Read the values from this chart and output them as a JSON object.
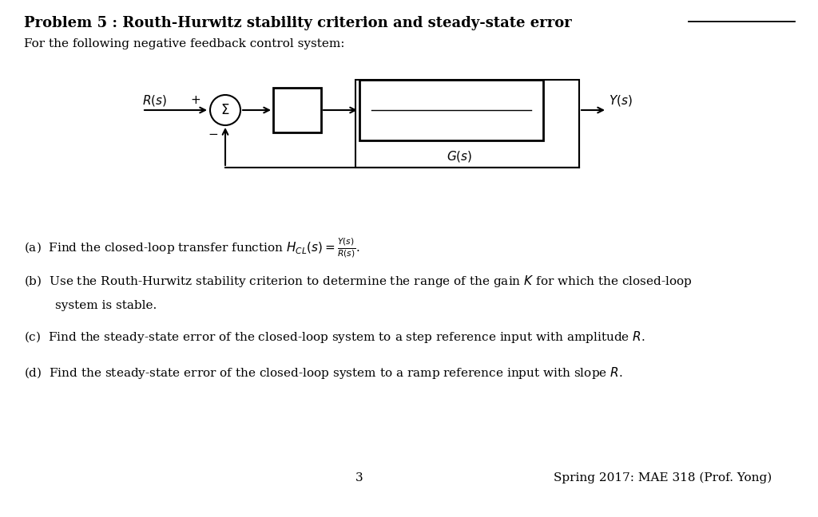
{
  "bg_color": "#ffffff",
  "title_bold": "Problem 5 : Routh-Hurwitz stability criterion and steady-state error",
  "subtitle": "For the following negative feedback control system:",
  "part_a": "(a)  Find the closed-loop transfer function $H_{CL}(s) = \\frac{Y(s)}{R(s)}$.",
  "part_b_line1": "(b)  Use the Routh-Hurwitz stability criterion to determine the range of the gain $K$ for which the closed-loop",
  "part_b_line2": "        system is stable.",
  "part_c": "(c)  Find the steady-state error of the closed-loop system to a step reference input with amplitude $R$.",
  "part_d": "(d)  Find the steady-state error of the closed-loop system to a ramp reference input with slope $R$.",
  "page_number": "3",
  "footer": "Spring 2017: MAE 318 (Prof. Yong)"
}
